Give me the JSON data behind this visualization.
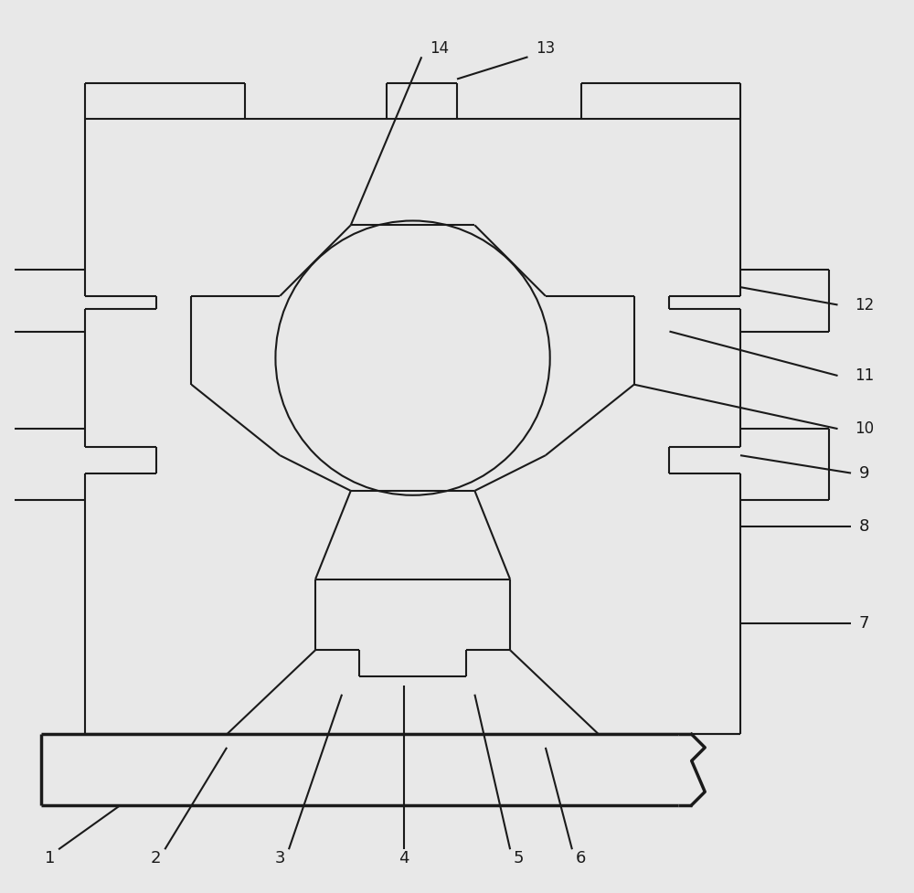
{
  "bg_color": "#e8e8e8",
  "line_color": "#1a1a1a",
  "lw": 1.5,
  "lw2": 2.5,
  "fig_width": 10.0,
  "fig_height": 9.77
}
